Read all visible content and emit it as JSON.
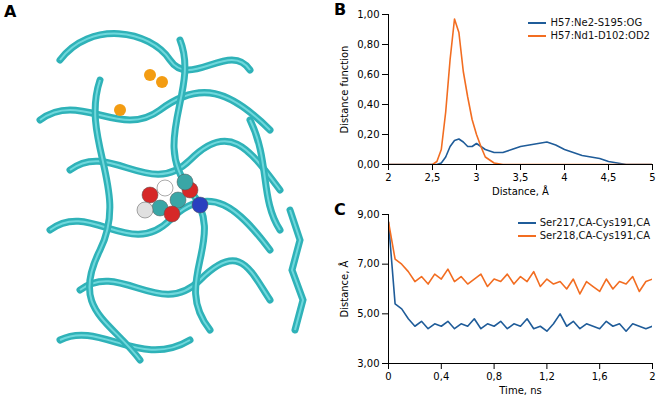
{
  "chart_data": [
    {
      "type": "image",
      "title": "A"
    },
    {
      "type": "line",
      "title": "B",
      "x_label": "Distance, Å",
      "y_label": "Distance function",
      "x": [
        2,
        2.2,
        2.4,
        2.5,
        2.55,
        2.6,
        2.65,
        2.7,
        2.75,
        2.8,
        2.85,
        2.9,
        2.95,
        3,
        3.05,
        3.1,
        3.2,
        3.3,
        3.4,
        3.5,
        3.6,
        3.7,
        3.8,
        3.9,
        4,
        4.1,
        4.2,
        4.3,
        4.4,
        4.5,
        4.6,
        4.7,
        4.8,
        5
      ],
      "series": [
        {
          "name": "H57:Ne2-S195:OG",
          "color": "#1f5c99",
          "values": [
            0,
            0,
            0,
            0,
            0,
            0.01,
            0.05,
            0.12,
            0.16,
            0.17,
            0.15,
            0.12,
            0.12,
            0.14,
            0.12,
            0.1,
            0.08,
            0.08,
            0.1,
            0.12,
            0.13,
            0.14,
            0.15,
            0.13,
            0.1,
            0.08,
            0.06,
            0.05,
            0.04,
            0.02,
            0.01,
            0,
            0,
            0
          ]
        },
        {
          "name": "H57:Nd1-D102:OD2",
          "color": "#f26d21",
          "values": [
            0,
            0,
            0,
            0,
            0.02,
            0.1,
            0.35,
            0.7,
            0.97,
            0.88,
            0.62,
            0.45,
            0.3,
            0.2,
            0.12,
            0.05,
            0.01,
            0,
            0,
            0,
            0,
            0,
            0,
            0,
            0,
            0,
            0,
            0,
            0,
            0,
            0,
            0,
            0,
            0
          ]
        }
      ],
      "xlim": [
        2,
        5
      ],
      "xticks": [
        2,
        {
          "value": 2.5,
          "label": "2,5"
        },
        3,
        {
          "value": 3.5,
          "label": "3,5"
        },
        4,
        {
          "value": 4.5,
          "label": "4,5"
        },
        5
      ],
      "ylim": [
        0,
        1
      ],
      "yticks": [
        {
          "value": 0,
          "label": "0,00"
        },
        {
          "value": 0.2,
          "label": "0,20"
        },
        {
          "value": 0.4,
          "label": "0,40"
        },
        {
          "value": 0.6,
          "label": "0,60"
        },
        {
          "value": 0.8,
          "label": "0,80"
        },
        {
          "value": 1,
          "label": "1,00"
        }
      ],
      "grid": false,
      "legend": "top-right"
    },
    {
      "type": "line",
      "title": "C",
      "x_label": "Time, ns",
      "y_label": "Distance, Å",
      "x": [
        0,
        0.05,
        0.1,
        0.15,
        0.2,
        0.25,
        0.3,
        0.35,
        0.4,
        0.45,
        0.5,
        0.55,
        0.6,
        0.65,
        0.7,
        0.75,
        0.8,
        0.85,
        0.9,
        0.95,
        1,
        1.05,
        1.1,
        1.15,
        1.2,
        1.25,
        1.3,
        1.35,
        1.4,
        1.45,
        1.5,
        1.55,
        1.6,
        1.65,
        1.7,
        1.75,
        1.8,
        1.85,
        1.9,
        1.95,
        2
      ],
      "series": [
        {
          "name": "Ser217,CA-Cys191,CA",
          "color": "#1f5c99",
          "values": [
            8.7,
            5.4,
            5.2,
            4.8,
            4.5,
            4.7,
            4.4,
            4.6,
            4.5,
            4.7,
            4.4,
            4.6,
            4.5,
            4.8,
            4.4,
            4.6,
            4.5,
            4.7,
            4.4,
            4.6,
            4.5,
            4.8,
            4.4,
            4.5,
            4.3,
            4.6,
            5.0,
            4.5,
            4.7,
            4.4,
            4.6,
            4.5,
            4.4,
            4.7,
            4.5,
            4.6,
            4.3,
            4.6,
            4.5,
            4.4,
            4.5
          ]
        },
        {
          "name": "Ser218,CA-Cys191,CA",
          "color": "#f26d21",
          "values": [
            8.7,
            7.2,
            7.0,
            6.7,
            6.3,
            6.5,
            6.2,
            6.6,
            6.4,
            6.8,
            6.3,
            6.5,
            6.2,
            6.4,
            6.6,
            6.1,
            6.4,
            6.3,
            6.6,
            6.2,
            6.5,
            6.3,
            6.7,
            6.1,
            6.4,
            6.2,
            6.3,
            6.0,
            6.4,
            5.8,
            6.3,
            6.1,
            5.9,
            6.4,
            6.0,
            6.3,
            6.2,
            6.5,
            5.9,
            6.3,
            6.4
          ]
        }
      ],
      "xlim": [
        0,
        2
      ],
      "xticks": [
        0,
        {
          "value": 0.4,
          "label": "0,4"
        },
        {
          "value": 0.8,
          "label": "0,8"
        },
        {
          "value": 1.2,
          "label": "1,2"
        },
        {
          "value": 1.6,
          "label": "1,6"
        },
        2
      ],
      "ylim": [
        3,
        9
      ],
      "yticks": [
        {
          "value": 3,
          "label": "3,00"
        },
        {
          "value": 5,
          "label": "5,00"
        },
        {
          "value": 7,
          "label": "7,00"
        },
        {
          "value": 9,
          "label": "9,00"
        }
      ],
      "grid": false,
      "legend": "top-right"
    }
  ]
}
